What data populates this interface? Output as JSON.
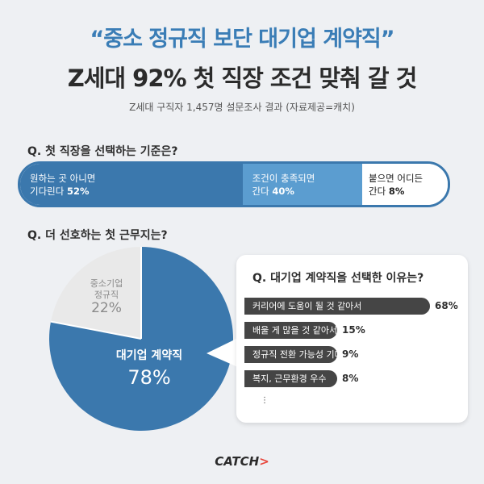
{
  "headline": "“중소 정규직 보단 대기업 계약직”",
  "subhead": "Z세대 92% 첫 직장 조건 맞춰 갈 것",
  "source": "Z세대 구직자 1,457명 설문조사 결과 (자료제공=캐치)",
  "logo": {
    "text": "CATCH",
    "mark": ">"
  },
  "colors": {
    "accent": "#3a7db6",
    "dark": "#454545",
    "light_blue": "#5b9dd0",
    "logo_red": "#e8463b"
  },
  "chart_data": [
    {
      "type": "bar",
      "title": "Q. 첫 직장을 선택하는 기준은?",
      "stacked": true,
      "categories": [
        "원하는 곳 아니면 기다린다",
        "조건이 충족되면 간다",
        "붙으면 어디든 간다"
      ],
      "values": [
        52,
        40,
        8
      ],
      "labels": [
        "원하는 곳 아니면\n기다린다",
        "조건이 충족되면\n간다",
        "붙으면 어디든\n간다"
      ],
      "value_labels": [
        "52%",
        "40%",
        "8%"
      ]
    },
    {
      "type": "pie",
      "title": "Q. 더 선호하는 첫 근무지는?",
      "categories": [
        "대기업 계약직",
        "중소기업 정규직"
      ],
      "values": [
        78,
        22
      ],
      "labels": [
        "대기업 계약직",
        "중소기업\n정규직"
      ],
      "value_labels": [
        "78%",
        "22%"
      ]
    },
    {
      "type": "bar",
      "orientation": "horizontal",
      "title": "Q. 대기업 계약직을 선택한 이유는?",
      "categories": [
        "커리어에 도움이 될 것 같아서",
        "배울 게 많을 것 같아서",
        "정규직 전환 가능성 기대",
        "복지, 근무환경 우수"
      ],
      "values": [
        68,
        15,
        9,
        8
      ],
      "value_labels": [
        "68%",
        "15%",
        "9%",
        "8%"
      ],
      "more": "⋮"
    }
  ]
}
